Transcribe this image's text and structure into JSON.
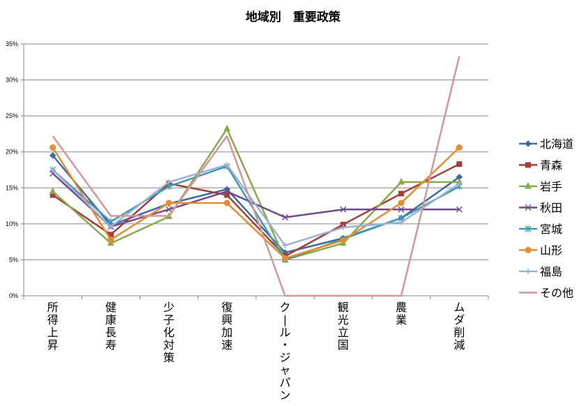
{
  "chart_data": {
    "type": "line",
    "title": "地域別　重要政策",
    "categories": [
      "所得上昇",
      "健康長寿",
      "少子化対策",
      "復興加速",
      "クール・ジャパン",
      "観光立国",
      "農業",
      "ムダ削減"
    ],
    "y_ticks": [
      "0%",
      "5%",
      "10%",
      "15%",
      "20%",
      "25%",
      "30%",
      "35%"
    ],
    "ylim": [
      0,
      35
    ],
    "y_unit": "%",
    "grid": true,
    "legend_position": "right",
    "series": [
      {
        "name": "北海道",
        "color": "#3b6aa7",
        "marker": "diamond",
        "values": [
          19.5,
          9.8,
          12.8,
          14.8,
          6.0,
          8.0,
          10.8,
          16.5
        ]
      },
      {
        "name": "青森",
        "color": "#a63d3a",
        "marker": "square",
        "values": [
          14.0,
          8.5,
          15.6,
          14.0,
          5.5,
          9.9,
          14.2,
          18.3
        ]
      },
      {
        "name": "岩手",
        "color": "#87a94a",
        "marker": "triangle",
        "values": [
          14.5,
          7.3,
          11.0,
          23.2,
          5.0,
          7.3,
          15.8,
          15.8
        ]
      },
      {
        "name": "秋田",
        "color": "#6d4c8c",
        "marker": "x",
        "values": [
          17.0,
          9.6,
          12.0,
          14.5,
          10.9,
          12.0,
          12.0,
          12.0
        ]
      },
      {
        "name": "宮城",
        "color": "#3d9ab0",
        "marker": "asterisk",
        "values": [
          17.5,
          10.3,
          15.2,
          18.0,
          5.0,
          7.9,
          10.8,
          15.2
        ]
      },
      {
        "name": "山形",
        "color": "#e88b2e",
        "marker": "circle",
        "values": [
          20.6,
          7.8,
          12.9,
          12.9,
          5.2,
          7.7,
          12.9,
          20.6
        ]
      },
      {
        "name": "福島",
        "color": "#9ab0d8",
        "marker": "plus",
        "values": [
          17.5,
          9.6,
          15.8,
          18.2,
          7.0,
          9.5,
          10.2,
          15.6
        ]
      },
      {
        "name": "その他",
        "color": "#d99594",
        "marker": "none",
        "values": [
          22.2,
          11.1,
          11.1,
          22.2,
          0,
          0,
          0,
          33.3
        ]
      }
    ]
  }
}
